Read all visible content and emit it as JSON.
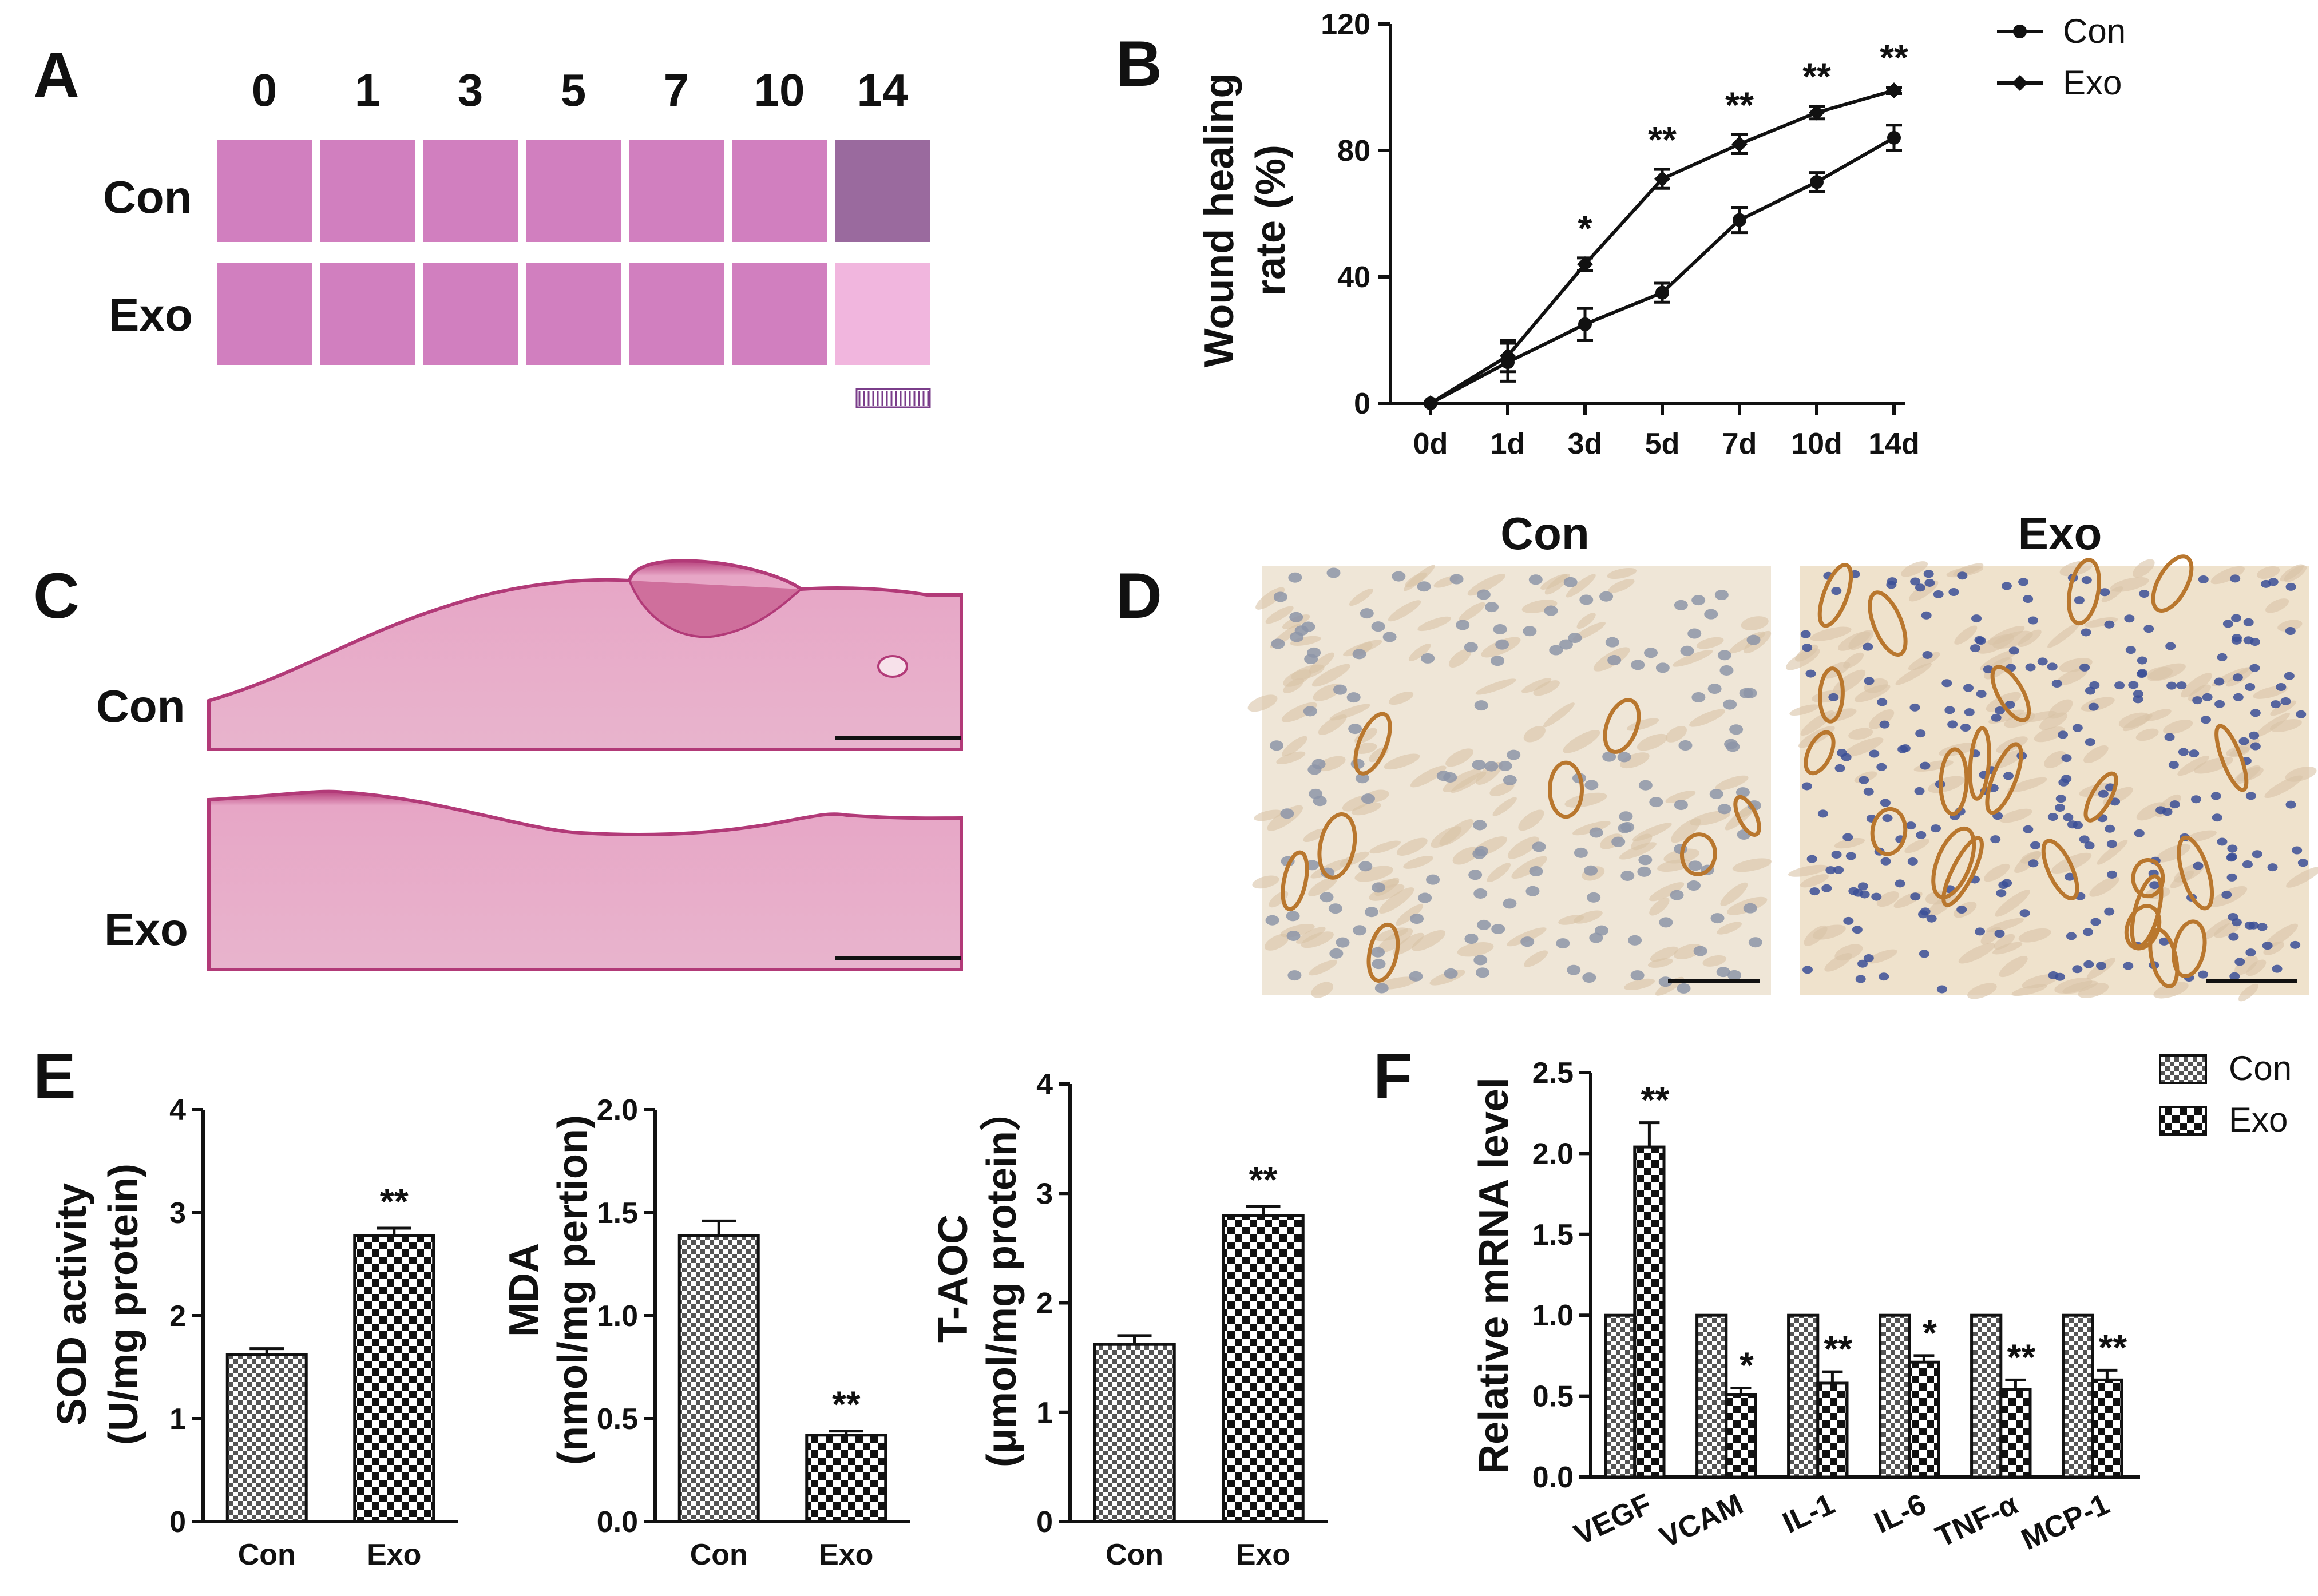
{
  "panel_labels": {
    "a": "A",
    "b": "B",
    "c": "C",
    "d": "D",
    "e": "E",
    "f": "F"
  },
  "panel_a": {
    "day_labels": [
      "0",
      "1",
      "3",
      "5",
      "7",
      "10",
      "14"
    ],
    "row_labels": [
      "Con",
      "Exo"
    ]
  },
  "panel_c": {
    "row_labels": [
      "Con",
      "Exo"
    ]
  },
  "panel_d": {
    "col_labels": [
      "Con",
      "Exo"
    ]
  },
  "colors": {
    "wound_photo_bg": "#d17fbf",
    "wound_dark": "#7a1626",
    "he_pink": "#e6a4c1",
    "ihc_bg": "#efe6d7",
    "ihc_brown": "#b9772e",
    "ihc_blue": "#2a3f86"
  },
  "chart_data": [
    {
      "id": "B",
      "type": "line",
      "ylabel": "Wound healing rate (%)",
      "ylabel_lines": [
        "Wound healing",
        "rate (%)"
      ],
      "ylim": [
        0,
        120
      ],
      "yticks": [
        "0",
        "40",
        "80",
        "120"
      ],
      "categories": [
        "0d",
        "1d",
        "3d",
        "5d",
        "7d",
        "10d",
        "14d"
      ],
      "legend_position": "top-right",
      "series": [
        {
          "name": "Con",
          "values": [
            0,
            13,
            25,
            35,
            58,
            70,
            84
          ],
          "errors": [
            0,
            6,
            5,
            3,
            4,
            3,
            4
          ]
        },
        {
          "name": "Exo",
          "values": [
            0,
            15,
            44,
            71,
            82,
            92,
            99
          ],
          "errors": [
            0,
            5,
            2,
            3,
            3,
            2,
            1
          ]
        }
      ],
      "significance": [
        "",
        "",
        "*",
        "**",
        "**",
        "**",
        "**"
      ]
    },
    {
      "id": "E1",
      "type": "bar",
      "ylabel_lines": [
        "SOD activity",
        "(U/mg protein)"
      ],
      "ylim": [
        0,
        4
      ],
      "yticks": [
        "0",
        "1",
        "2",
        "3",
        "4"
      ],
      "categories": [
        "Con",
        "Exo"
      ],
      "values": [
        1.62,
        2.78
      ],
      "errors": [
        0.06,
        0.07
      ],
      "significance": [
        "",
        "**"
      ]
    },
    {
      "id": "E2",
      "type": "bar",
      "ylabel_lines": [
        "MDA",
        "(nmol/mg pertion)"
      ],
      "ylim": [
        0,
        2.0
      ],
      "yticks": [
        "0.0",
        "0.5",
        "1.0",
        "1.5",
        "2.0"
      ],
      "categories": [
        "Con",
        "Exo"
      ],
      "values": [
        1.39,
        0.42
      ],
      "errors": [
        0.07,
        0.02
      ],
      "significance": [
        "",
        "**"
      ]
    },
    {
      "id": "E3",
      "type": "bar",
      "ylabel_lines": [
        "T-AOC",
        "(μmol/mg protein）"
      ],
      "ylim": [
        0,
        4
      ],
      "yticks": [
        "0",
        "1",
        "2",
        "3",
        "4"
      ],
      "categories": [
        "Con",
        "Exo"
      ],
      "values": [
        1.62,
        2.8
      ],
      "errors": [
        0.08,
        0.08
      ],
      "significance": [
        "",
        "**"
      ]
    },
    {
      "id": "F",
      "type": "bar",
      "ylabel": "Relative mRNA level",
      "ylim": [
        0,
        2.5
      ],
      "yticks": [
        "0.0",
        "0.5",
        "1.0",
        "1.5",
        "2.0",
        "2.5"
      ],
      "categories": [
        "VEGF",
        "VCAM",
        "IL-1",
        "IL-6",
        "TNF-α",
        "MCP-1"
      ],
      "legend_position": "top-right",
      "series": [
        {
          "name": "Con",
          "values": [
            1.0,
            1.0,
            1.0,
            1.0,
            1.0,
            1.0
          ],
          "errors": [
            0,
            0,
            0,
            0,
            0,
            0
          ]
        },
        {
          "name": "Exo",
          "values": [
            2.04,
            0.51,
            0.58,
            0.71,
            0.54,
            0.6
          ],
          "errors": [
            0.15,
            0.04,
            0.07,
            0.04,
            0.06,
            0.06
          ]
        }
      ],
      "significance": [
        "**",
        "*",
        "**",
        "*",
        "**",
        "**"
      ]
    }
  ]
}
